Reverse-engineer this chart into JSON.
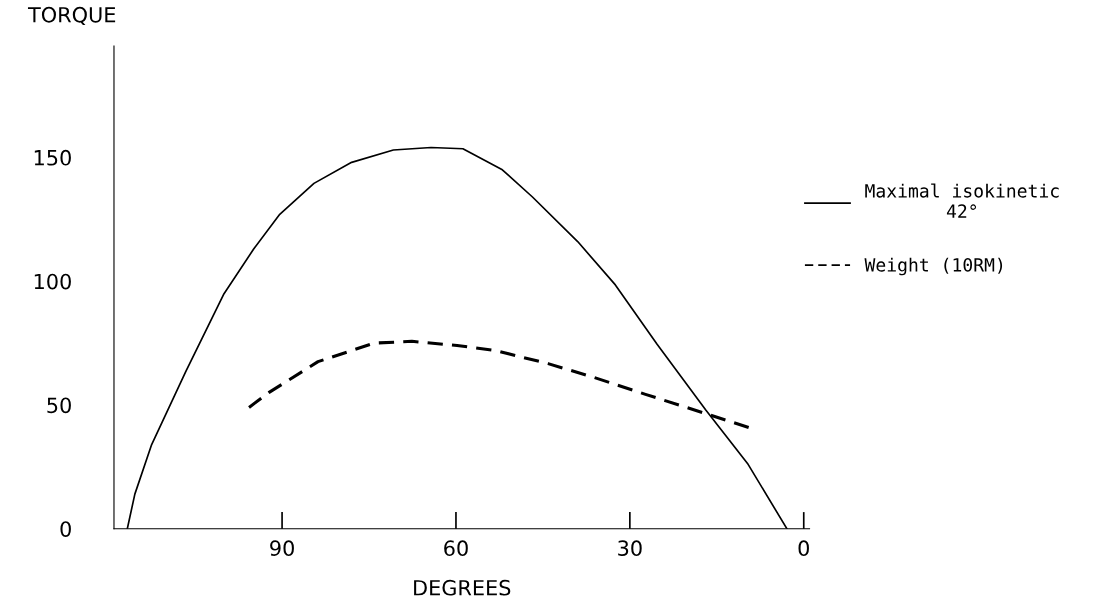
{
  "chart_data": {
    "type": "line",
    "ylabel": "TORQUE",
    "xlabel": "DEGREES",
    "xlim": [
      119,
      -1
    ],
    "xticks": [
      90,
      60,
      30,
      0
    ],
    "ylim": [
      0,
      195
    ],
    "yticks": [
      0,
      50,
      100,
      150
    ],
    "grid": false,
    "legend": "right",
    "marker": "none",
    "series": [
      {
        "name": "Maximal isokinetic\n42°",
        "color": "#000000",
        "line_style": "solid",
        "x": [
          116.7,
          115.4,
          112.5,
          106.6,
          100.1,
          94.9,
          90.4,
          84.5,
          78,
          70.8,
          64.3,
          58.8,
          52,
          46.8,
          39,
          32.5,
          25.3,
          16.9,
          9.7,
          2.9
        ],
        "values": [
          0,
          14,
          34,
          63.6,
          94.6,
          113,
          127,
          139.5,
          148,
          153,
          154,
          153.5,
          145,
          134,
          116,
          98.5,
          74.5,
          48,
          26.4,
          0
        ]
      },
      {
        "name": "Weight (10RM)",
        "color": "#000000",
        "line_style": "dashed",
        "x": [
          95.7,
          92.3,
          83.8,
          74.1,
          67.6,
          59.8,
          53.2,
          44.1,
          36.4,
          27.3,
          16.9,
          9.1
        ],
        "values": [
          49,
          55,
          67.5,
          75,
          75.7,
          74,
          72,
          66.7,
          61.3,
          54.3,
          46.5,
          40.6
        ]
      }
    ]
  }
}
